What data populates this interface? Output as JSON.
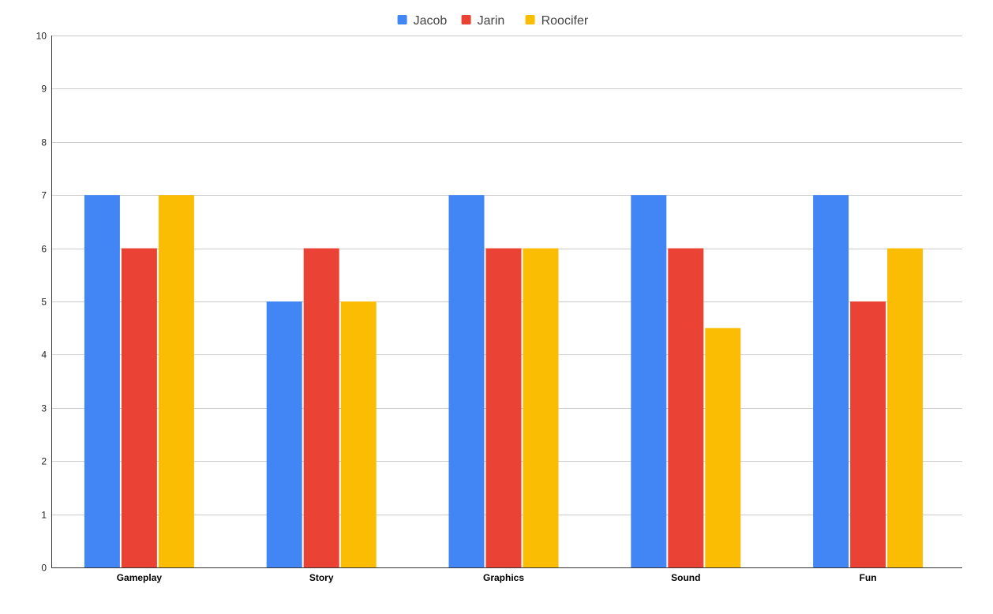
{
  "chart_data": {
    "type": "bar",
    "title": "",
    "xlabel": "",
    "ylabel": "",
    "categories": [
      "Gameplay",
      "Story",
      "Graphics",
      "Sound",
      "Fun"
    ],
    "series": [
      {
        "name": "Jacob",
        "color": "#4285f4",
        "values": [
          7,
          5,
          7,
          7,
          7
        ]
      },
      {
        "name": "Jarin",
        "color": "#ea4335",
        "values": [
          6,
          6,
          6,
          6,
          5
        ]
      },
      {
        "name": "Roocifer",
        "color": "#fbbc04",
        "values": [
          7,
          5,
          6,
          4.5,
          6
        ]
      }
    ],
    "ylim": [
      0,
      10
    ],
    "yticks": [
      0,
      1,
      2,
      3,
      4,
      5,
      6,
      7,
      8,
      9,
      10
    ],
    "grid": true,
    "legend_position": "top-center"
  }
}
